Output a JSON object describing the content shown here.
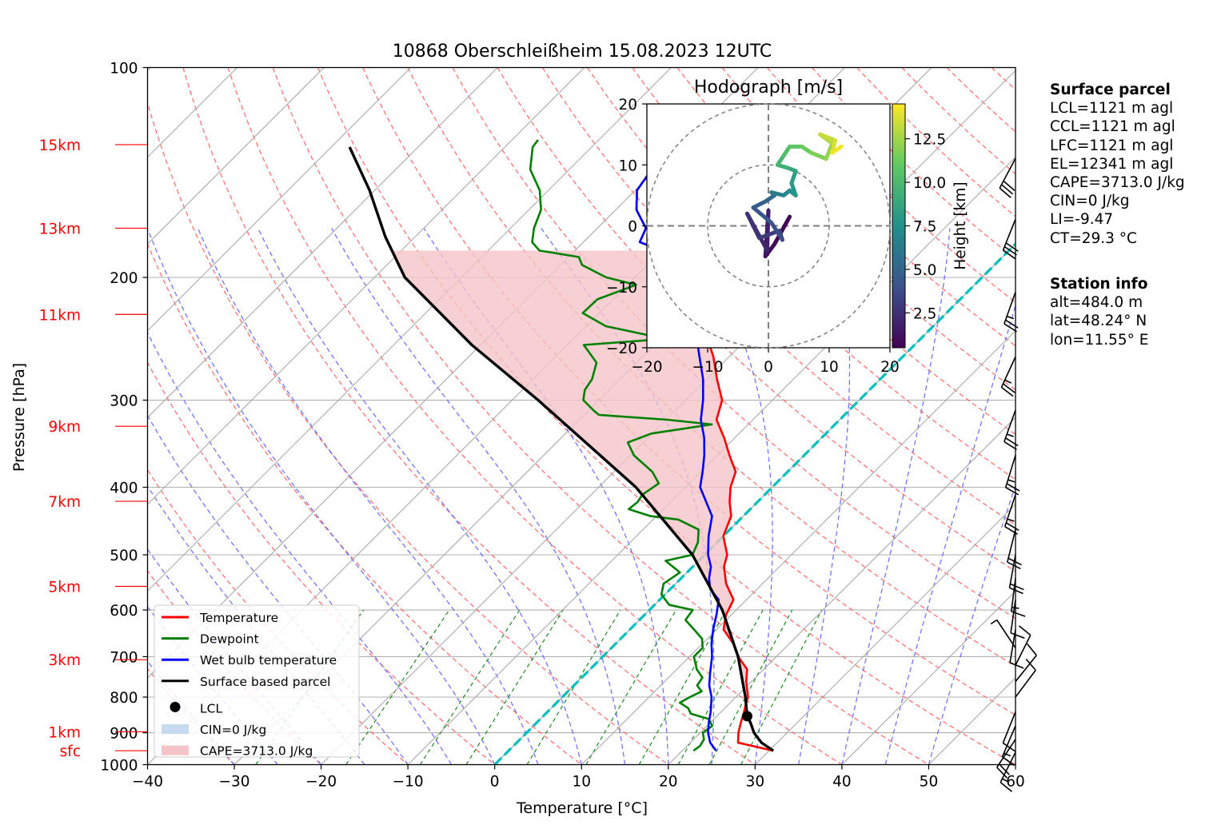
{
  "title": "10868 Oberschleißheim 15.08.2023 12UTC",
  "chart_data": {
    "type": "skew-t",
    "xlabel": "Temperature [°C]",
    "ylabel": "Pressure [hPa]",
    "xlim": [
      -40,
      60
    ],
    "ylim": [
      1000,
      100
    ],
    "log_y": true,
    "grid": true,
    "x_ticks": [
      -40,
      -30,
      -20,
      -10,
      0,
      10,
      20,
      30,
      40,
      50,
      60
    ],
    "x_tick_labels": [
      "−40",
      "−30",
      "−20",
      "−10",
      "0",
      "10",
      "20",
      "30",
      "40",
      "50",
      "60"
    ],
    "y_ticks": [
      100,
      200,
      300,
      400,
      500,
      600,
      700,
      800,
      900,
      1000
    ],
    "height_labels": [
      {
        "label": "15km",
        "p": 129
      },
      {
        "label": "13km",
        "p": 170
      },
      {
        "label": "11km",
        "p": 226
      },
      {
        "label": "9km",
        "p": 327
      },
      {
        "label": "7km",
        "p": 419
      },
      {
        "label": "5km",
        "p": 555
      },
      {
        "label": "3km",
        "p": 707
      },
      {
        "label": "1km",
        "p": 897
      },
      {
        "label": "sfc",
        "p": 955
      }
    ],
    "legend_position": "lower-left",
    "legend": [
      {
        "label": "Temperature",
        "kind": "line",
        "color": "#ff0000"
      },
      {
        "label": "Dewpoint",
        "kind": "line",
        "color": "#008000"
      },
      {
        "label": "Wet bulb temperature",
        "kind": "line",
        "color": "#0000ff"
      },
      {
        "label": "Surface based parcel",
        "kind": "line",
        "color": "#000000"
      },
      {
        "label": "LCL",
        "kind": "dot",
        "color": "#000000"
      },
      {
        "label": "CIN=0 J/kg",
        "kind": "patch",
        "color": "#c6dbef"
      },
      {
        "label": "CAPE=3713.0 J/kg",
        "kind": "patch",
        "color": "#f4c4c8"
      }
    ],
    "series": [
      {
        "name": "Temperature",
        "color": "#ff0000",
        "points": [
          [
            955,
            30.5
          ],
          [
            930,
            25.5
          ],
          [
            900,
            24.4
          ],
          [
            870,
            23.5
          ],
          [
            845,
            22.8
          ],
          [
            820,
            22.0
          ],
          [
            800,
            21.4
          ],
          [
            760,
            19.4
          ],
          [
            730,
            18.1
          ],
          [
            700,
            15.6
          ],
          [
            670,
            13.5
          ],
          [
            640,
            10.8
          ],
          [
            610,
            9.4
          ],
          [
            580,
            8.5
          ],
          [
            550,
            5.8
          ],
          [
            520,
            3.6
          ],
          [
            500,
            2.6
          ],
          [
            470,
            0.0
          ],
          [
            440,
            -1.4
          ],
          [
            420,
            -3.2
          ],
          [
            400,
            -4.8
          ],
          [
            380,
            -6.0
          ],
          [
            360,
            -8.6
          ],
          [
            340,
            -11.2
          ],
          [
            320,
            -14.2
          ],
          [
            300,
            -15.8
          ],
          [
            280,
            -18.8
          ],
          [
            260,
            -21.8
          ],
          [
            240,
            -25.5
          ],
          [
            220,
            -30.4
          ],
          [
            205,
            -34.8
          ],
          [
            195,
            -38.0
          ],
          [
            188,
            -38.8
          ],
          [
            183,
            -40.0
          ],
          [
            178,
            -43.5
          ],
          [
            170,
            -44.4
          ],
          [
            160,
            -47.6
          ],
          [
            150,
            -49.8
          ],
          [
            140,
            -50.5
          ],
          [
            130,
            -51.0
          ],
          [
            127,
            -51.0
          ]
        ]
      },
      {
        "name": "Wet bulb temperature",
        "color": "#0000ff",
        "points": [
          [
            955,
            23.9
          ],
          [
            930,
            22.3
          ],
          [
            900,
            20.9
          ],
          [
            870,
            19.8
          ],
          [
            840,
            18.8
          ],
          [
            800,
            17.2
          ],
          [
            770,
            15.6
          ],
          [
            740,
            14.3
          ],
          [
            700,
            12.6
          ],
          [
            670,
            11.0
          ],
          [
            640,
            9.6
          ],
          [
            610,
            8.3
          ],
          [
            580,
            6.8
          ],
          [
            560,
            4.6
          ],
          [
            540,
            3.2
          ],
          [
            520,
            2.1
          ],
          [
            500,
            0.4
          ],
          [
            470,
            -1.7
          ],
          [
            440,
            -3.6
          ],
          [
            400,
            -8.3
          ],
          [
            380,
            -9.8
          ],
          [
            360,
            -11.5
          ],
          [
            340,
            -13.5
          ],
          [
            320,
            -16.0
          ],
          [
            300,
            -18.0
          ],
          [
            280,
            -20.4
          ],
          [
            260,
            -23.4
          ],
          [
            240,
            -26.6
          ],
          [
            220,
            -31.2
          ],
          [
            210,
            -34.3
          ],
          [
            200,
            -37.2
          ],
          [
            190,
            -38.7
          ],
          [
            183,
            -40.0
          ],
          [
            178,
            -43.5
          ],
          [
            170,
            -44.4
          ],
          [
            160,
            -47.6
          ],
          [
            150,
            -49.8
          ],
          [
            140,
            -50.5
          ],
          [
            130,
            -51.0
          ],
          [
            127,
            -51.0
          ]
        ]
      },
      {
        "name": "Dewpoint",
        "color": "#008000",
        "points": [
          [
            955,
            21.3
          ],
          [
            940,
            21.5
          ],
          [
            920,
            21.2
          ],
          [
            900,
            20.3
          ],
          [
            880,
            20.6
          ],
          [
            860,
            19.4
          ],
          [
            845,
            16.7
          ],
          [
            830,
            15.8
          ],
          [
            815,
            14.2
          ],
          [
            800,
            14.7
          ],
          [
            785,
            15.4
          ],
          [
            770,
            14.2
          ],
          [
            750,
            13.9
          ],
          [
            730,
            12.3
          ],
          [
            700,
            10.5
          ],
          [
            680,
            10.5
          ],
          [
            660,
            9.4
          ],
          [
            640,
            7.4
          ],
          [
            620,
            5.3
          ],
          [
            600,
            5.0
          ],
          [
            590,
            1.7
          ],
          [
            570,
            -0.4
          ],
          [
            550,
            -1.4
          ],
          [
            530,
            -0.8
          ],
          [
            510,
            -3.8
          ],
          [
            500,
            -1.4
          ],
          [
            480,
            -2.2
          ],
          [
            460,
            -3.6
          ],
          [
            445,
            -7.1
          ],
          [
            440,
            -10.7
          ],
          [
            430,
            -14.0
          ],
          [
            420,
            -13.8
          ],
          [
            410,
            -14.1
          ],
          [
            395,
            -13.5
          ],
          [
            380,
            -15.6
          ],
          [
            360,
            -19.6
          ],
          [
            345,
            -21.8
          ],
          [
            335,
            -20.1
          ],
          [
            325,
            -14.2
          ],
          [
            320,
            -19.9
          ],
          [
            315,
            -28.3
          ],
          [
            310,
            -29.5
          ],
          [
            300,
            -31.8
          ],
          [
            290,
            -32.8
          ],
          [
            280,
            -33.2
          ],
          [
            265,
            -34.6
          ],
          [
            250,
            -38.1
          ],
          [
            245,
            -29.4
          ],
          [
            235,
            -37.7
          ],
          [
            225,
            -41.9
          ],
          [
            215,
            -41.8
          ],
          [
            205,
            -39.0
          ],
          [
            200,
            -43.3
          ],
          [
            192,
            -47.5
          ],
          [
            187,
            -48.8
          ],
          [
            183,
            -54.1
          ],
          [
            178,
            -55.9
          ],
          [
            170,
            -57.3
          ],
          [
            160,
            -58.6
          ],
          [
            150,
            -61.0
          ],
          [
            140,
            -64.5
          ],
          [
            130,
            -66.8
          ],
          [
            127,
            -67.0
          ]
        ]
      },
      {
        "name": "Surface based parcel",
        "color": "#000000",
        "points": [
          [
            955,
            30.5
          ],
          [
            930,
            28.2
          ],
          [
            900,
            26.2
          ],
          [
            870,
            24.6
          ],
          [
            852,
            23.5
          ],
          [
            800,
            21.1
          ],
          [
            700,
            15.6
          ],
          [
            600,
            8.4
          ],
          [
            500,
            -1.4
          ],
          [
            400,
            -15.7
          ],
          [
            300,
            -37.0
          ],
          [
            250,
            -51.0
          ],
          [
            200,
            -66.5
          ],
          [
            175,
            -73.4
          ],
          [
            150,
            -80.6
          ],
          [
            130,
            -87.9
          ]
        ]
      }
    ],
    "lcl": {
      "p": 852,
      "t": 23.5
    },
    "cape_label": "CAPE=3713.0 J/kg",
    "cin_label": "CIN=0 J/kg",
    "cape_shading": {
      "from_p": 852,
      "to_p": 183
    },
    "wind_barbs": [
      {
        "p": 960,
        "u": 4,
        "v": 8
      },
      {
        "p": 920,
        "u": 6,
        "v": 9
      },
      {
        "p": 880,
        "u": 3,
        "v": 7
      },
      {
        "p": 840,
        "u": 2,
        "v": 5
      },
      {
        "p": 800,
        "u": -3,
        "v": -4
      },
      {
        "p": 760,
        "u": -4,
        "v": -5
      },
      {
        "p": 720,
        "u": -3,
        "v": -6
      },
      {
        "p": 680,
        "u": 2,
        "v": -3
      },
      {
        "p": 640,
        "u": 1,
        "v": 6
      },
      {
        "p": 580,
        "u": 1,
        "v": 7
      },
      {
        "p": 540,
        "u": 1,
        "v": 8
      },
      {
        "p": 500,
        "u": 2,
        "v": 11
      },
      {
        "p": 460,
        "u": 3,
        "v": 12
      },
      {
        "p": 410,
        "u": 4,
        "v": 12
      },
      {
        "p": 360,
        "u": 4,
        "v": 13
      },
      {
        "p": 310,
        "u": 5,
        "v": 14
      },
      {
        "p": 260,
        "u": 6,
        "v": 13
      },
      {
        "p": 210,
        "u": 5,
        "v": 14
      },
      {
        "p": 165,
        "u": 6,
        "v": 15
      },
      {
        "p": 135,
        "u": 8,
        "v": 15
      }
    ],
    "hodograph": {
      "title": "Hodograph [m/s]",
      "xlim": [
        -20,
        20
      ],
      "ylim": [
        -20,
        20
      ],
      "x_ticks": [
        -20,
        -10,
        0,
        10,
        20
      ],
      "y_ticks": [
        -20,
        -10,
        0,
        10,
        20
      ],
      "tick_labels": [
        "−20",
        "−10",
        "0",
        "10",
        "20"
      ],
      "rings": [
        10,
        20
      ],
      "colorbar_label": "Height [km]",
      "colorbar_ticks": [
        "2.5",
        "5.0",
        "7.5",
        "10.0",
        "12.5"
      ],
      "colorbar_range": [
        0.5,
        14.5
      ],
      "points": [
        {
          "u": 3.5,
          "v": 1.5,
          "h": 0.5
        },
        {
          "u": 1.0,
          "v": -3.0,
          "h": 0.8
        },
        {
          "u": -0.5,
          "v": -5.0,
          "h": 1.2
        },
        {
          "u": 0.0,
          "v": 2.5,
          "h": 1.6
        },
        {
          "u": -0.2,
          "v": -4.0,
          "h": 2.0
        },
        {
          "u": -3.5,
          "v": 2.0,
          "h": 2.4
        },
        {
          "u": -1.5,
          "v": -2.0,
          "h": 2.8
        },
        {
          "u": 1.8,
          "v": -0.8,
          "h": 3.2
        },
        {
          "u": 2.3,
          "v": -2.3,
          "h": 3.6
        },
        {
          "u": 0.5,
          "v": 0.5,
          "h": 4.0
        },
        {
          "u": -2.5,
          "v": 3.0,
          "h": 4.4
        },
        {
          "u": -0.5,
          "v": 4.0,
          "h": 4.8
        },
        {
          "u": 1.0,
          "v": 5.0,
          "h": 5.4
        },
        {
          "u": 0.5,
          "v": 5.5,
          "h": 6.0
        },
        {
          "u": 2.5,
          "v": 5.0,
          "h": 6.6
        },
        {
          "u": 3.5,
          "v": 5.8,
          "h": 7.2
        },
        {
          "u": 4.5,
          "v": 5.0,
          "h": 7.6
        },
        {
          "u": 3.8,
          "v": 7.0,
          "h": 8.0
        },
        {
          "u": 4.5,
          "v": 9.0,
          "h": 8.5
        },
        {
          "u": 3.2,
          "v": 9.5,
          "h": 9.0
        },
        {
          "u": 1.5,
          "v": 10.0,
          "h": 9.5
        },
        {
          "u": 2.5,
          "v": 11.5,
          "h": 10.0
        },
        {
          "u": 3.5,
          "v": 13.0,
          "h": 10.5
        },
        {
          "u": 5.5,
          "v": 13.0,
          "h": 11.0
        },
        {
          "u": 7.0,
          "v": 12.0,
          "h": 11.5
        },
        {
          "u": 9.5,
          "v": 11.0,
          "h": 12.0
        },
        {
          "u": 10.5,
          "v": 13.5,
          "h": 12.5
        },
        {
          "u": 8.5,
          "v": 15.0,
          "h": 13.0
        },
        {
          "u": 11.0,
          "v": 14.0,
          "h": 13.5
        },
        {
          "u": 10.5,
          "v": 12.0,
          "h": 14.0
        },
        {
          "u": 12.0,
          "v": 13.0,
          "h": 14.5
        }
      ]
    }
  },
  "surface_parcel": {
    "heading": "Surface parcel",
    "lines": [
      "LCL=1121 m agl",
      "CCL=1121 m agl",
      "LFC=1121 m agl",
      "EL=12341 m agl",
      "CAPE=3713.0 J/kg",
      "CIN=0 J/kg",
      "LI=-9.47",
      "CT=29.3 °C"
    ]
  },
  "station_info": {
    "heading": "Station info",
    "lines": [
      "alt=484.0 m",
      "lat=48.24° N",
      "lon=11.55° E"
    ]
  }
}
